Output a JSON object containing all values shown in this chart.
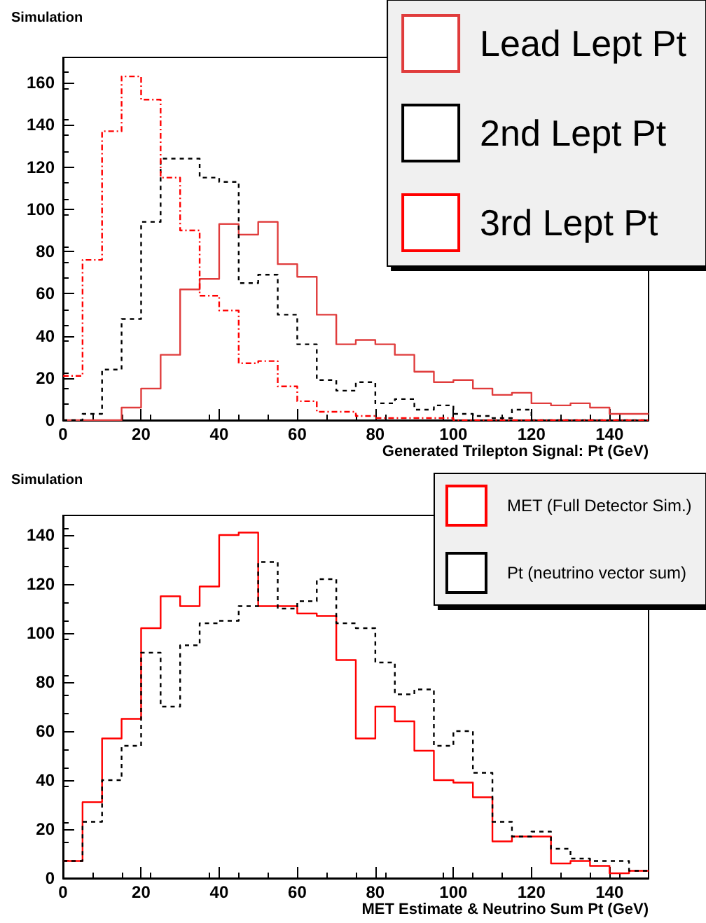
{
  "chart_data": [
    {
      "type": "histogram",
      "annotations": [
        "Simulation"
      ],
      "xlabel": "Generated Trilepton Signal: Pt (GeV)",
      "bins": [
        0,
        5,
        10,
        15,
        20,
        25,
        30,
        35,
        40,
        45,
        50,
        55,
        60,
        65,
        70,
        75,
        80,
        85,
        90,
        95,
        100,
        105,
        110,
        115,
        120,
        125,
        130,
        135,
        140,
        145,
        150
      ],
      "xlim": [
        0,
        150
      ],
      "xticks": [
        0,
        20,
        40,
        60,
        80,
        100,
        120,
        140
      ],
      "ylim": [
        0,
        172
      ],
      "yticks": [
        0,
        20,
        40,
        60,
        80,
        100,
        120,
        140,
        160
      ],
      "legend": "top right",
      "grid": false,
      "series": [
        {
          "name": "Lead Lept Pt",
          "color": "#e03c3c",
          "line_style": "solid",
          "values": [
            0,
            0,
            0,
            6,
            15,
            31,
            62,
            67,
            93,
            88,
            94,
            74,
            68,
            50,
            36,
            38,
            36,
            31,
            23,
            18,
            19,
            15,
            12,
            13,
            8,
            7,
            8,
            6,
            3,
            3
          ]
        },
        {
          "name": "2nd Lept Pt",
          "color": "#000000",
          "line_style": "dashed",
          "values": [
            0,
            3,
            24,
            48,
            94,
            124,
            124,
            115,
            113,
            65,
            69,
            50,
            36,
            19,
            14,
            18,
            8,
            10,
            5,
            7,
            3,
            2,
            1,
            5,
            0,
            0,
            0,
            0,
            0,
            0
          ]
        },
        {
          "name": "3rd Lept Pt",
          "color": "#ff0000",
          "line_style": "dotted",
          "values": [
            21,
            76,
            137,
            163,
            152,
            115,
            90,
            59,
            52,
            27,
            28,
            16,
            9,
            4,
            4,
            2,
            1,
            1,
            1,
            1,
            0,
            0,
            0,
            0,
            0,
            0,
            0,
            0,
            0,
            0
          ]
        }
      ]
    },
    {
      "type": "histogram",
      "annotations": [
        "Simulation"
      ],
      "xlabel": "MET Estimate & Neutrino Sum Pt (GeV)",
      "bins": [
        0,
        5,
        10,
        15,
        20,
        25,
        30,
        35,
        40,
        45,
        50,
        55,
        60,
        65,
        70,
        75,
        80,
        85,
        90,
        95,
        100,
        105,
        110,
        115,
        120,
        125,
        130,
        135,
        140,
        145,
        150
      ],
      "xlim": [
        0,
        150
      ],
      "xticks": [
        0,
        20,
        40,
        60,
        80,
        100,
        120,
        140
      ],
      "ylim": [
        0,
        148
      ],
      "yticks": [
        0,
        20,
        40,
        60,
        80,
        100,
        120,
        140
      ],
      "legend": "top right",
      "grid": false,
      "series": [
        {
          "name": "MET (Full Detector Sim.)",
          "color": "#ff0000",
          "line_style": "solid",
          "values": [
            7,
            31,
            57,
            65,
            102,
            115,
            111,
            119,
            140,
            141,
            111,
            111,
            108,
            107,
            89,
            57,
            70,
            64,
            52,
            40,
            39,
            33,
            15,
            17,
            17,
            6,
            7,
            5,
            2,
            3
          ]
        },
        {
          "name": "Pt (neutrino vector sum)",
          "color": "#000000",
          "line_style": "dashed",
          "values": [
            7,
            23,
            40,
            54,
            92,
            70,
            95,
            104,
            105,
            111,
            129,
            110,
            113,
            122,
            104,
            102,
            88,
            75,
            77,
            54,
            60,
            43,
            23,
            17,
            19,
            12,
            8,
            7,
            7,
            3
          ]
        }
      ]
    }
  ]
}
